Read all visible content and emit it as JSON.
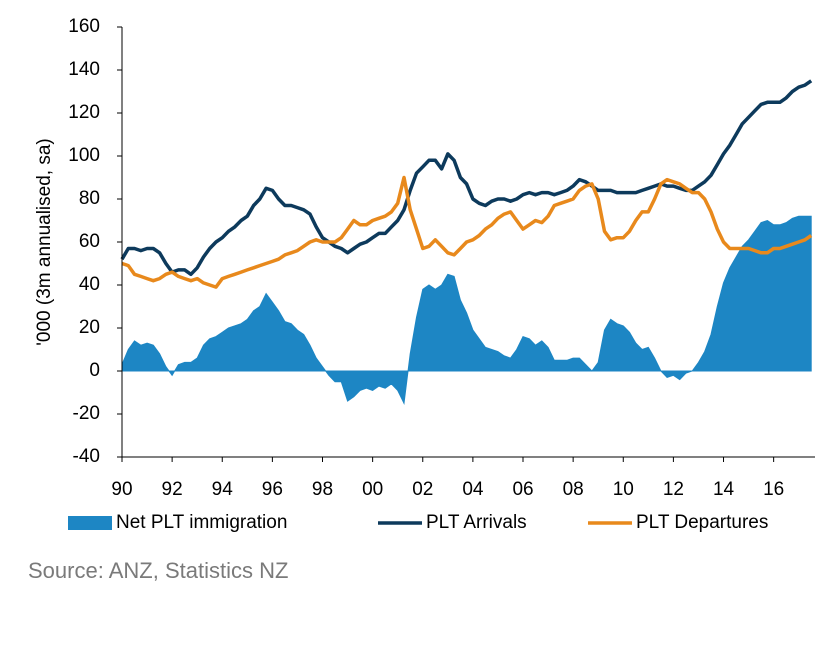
{
  "chart_data": {
    "type": "line",
    "y_label": "'000 (3m annualised, sa)",
    "source": "Source: ANZ, Statistics NZ",
    "ylim": [
      -40,
      160
    ],
    "yticks": [
      -40,
      -20,
      0,
      20,
      40,
      60,
      80,
      100,
      120,
      140,
      160
    ],
    "xlim": [
      1990,
      2017.65
    ],
    "xticks": [
      {
        "value": 1990,
        "label": "90"
      },
      {
        "value": 1992,
        "label": "92"
      },
      {
        "value": 1994,
        "label": "94"
      },
      {
        "value": 1996,
        "label": "96"
      },
      {
        "value": 1998,
        "label": "98"
      },
      {
        "value": 2000,
        "label": "00"
      },
      {
        "value": 2002,
        "label": "02"
      },
      {
        "value": 2004,
        "label": "04"
      },
      {
        "value": 2006,
        "label": "06"
      },
      {
        "value": 2008,
        "label": "08"
      },
      {
        "value": 2010,
        "label": "10"
      },
      {
        "value": 2012,
        "label": "12"
      },
      {
        "value": 2014,
        "label": "14"
      },
      {
        "value": 2016,
        "label": "16"
      }
    ],
    "x": [
      1990,
      1990.25,
      1990.5,
      1990.75,
      1991,
      1991.25,
      1991.5,
      1991.75,
      1992,
      1992.25,
      1992.5,
      1992.75,
      1993,
      1993.25,
      1993.5,
      1993.75,
      1994,
      1994.25,
      1994.5,
      1994.75,
      1995,
      1995.25,
      1995.5,
      1995.75,
      1996,
      1996.25,
      1996.5,
      1996.75,
      1997,
      1997.25,
      1997.5,
      1997.75,
      1998,
      1998.25,
      1998.5,
      1998.75,
      1999,
      1999.25,
      1999.5,
      1999.75,
      2000,
      2000.25,
      2000.5,
      2000.75,
      2001,
      2001.25,
      2001.5,
      2001.75,
      2002,
      2002.25,
      2002.5,
      2002.75,
      2003,
      2003.25,
      2003.5,
      2003.75,
      2004,
      2004.25,
      2004.5,
      2004.75,
      2005,
      2005.25,
      2005.5,
      2005.75,
      2006,
      2006.25,
      2006.5,
      2006.75,
      2007,
      2007.25,
      2007.5,
      2007.75,
      2008,
      2008.25,
      2008.5,
      2008.75,
      2009,
      2009.25,
      2009.5,
      2009.75,
      2010,
      2010.25,
      2010.5,
      2010.75,
      2011,
      2011.25,
      2011.5,
      2011.75,
      2012,
      2012.25,
      2012.5,
      2012.75,
      2013,
      2013.25,
      2013.5,
      2013.75,
      2014,
      2014.25,
      2014.5,
      2014.75,
      2015,
      2015.25,
      2015.5,
      2015.75,
      2016,
      2016.25,
      2016.5,
      2016.75,
      2017,
      2017.25,
      2017.5
    ],
    "series": [
      {
        "name": "Net PLT immigration",
        "color": "#1d86c4",
        "style": "area",
        "values": [
          3,
          10,
          14,
          12,
          13,
          12,
          8,
          2,
          -2,
          3,
          4,
          4,
          6,
          12,
          15,
          16,
          18,
          20,
          21,
          22,
          24,
          28,
          30,
          36,
          32,
          28,
          23,
          22,
          19,
          17,
          12,
          6,
          2,
          -2,
          -5,
          -5,
          -14,
          -12,
          -9,
          -8,
          -9,
          -7,
          -8,
          -6,
          -9,
          -15,
          8,
          25,
          38,
          40,
          38,
          40,
          45,
          44,
          33,
          27,
          19,
          15,
          11,
          10,
          9,
          7,
          6,
          10,
          16,
          15,
          12,
          14,
          11,
          5,
          5,
          5,
          6,
          6,
          3,
          0,
          4,
          19,
          24,
          22,
          21,
          18,
          13,
          10,
          11,
          6,
          0,
          -3,
          -2,
          -4,
          -1,
          0,
          4,
          9,
          17,
          30,
          41,
          48,
          53,
          58,
          61,
          65,
          69,
          70,
          68,
          68,
          69,
          71,
          72,
          72,
          72
        ]
      },
      {
        "name": "PLT Arrivals",
        "color": "#0d3a5c",
        "style": "line",
        "values": [
          52,
          57,
          57,
          56,
          57,
          57,
          55,
          50,
          46,
          47,
          47,
          45,
          48,
          53,
          57,
          60,
          62,
          65,
          67,
          70,
          72,
          77,
          80,
          85,
          84,
          80,
          77,
          77,
          76,
          75,
          73,
          67,
          62,
          60,
          58,
          57,
          55,
          57,
          59,
          60,
          62,
          64,
          64,
          67,
          70,
          75,
          84,
          92,
          95,
          98,
          98,
          94,
          101,
          98,
          90,
          87,
          80,
          78,
          77,
          79,
          80,
          80,
          79,
          80,
          82,
          83,
          82,
          83,
          83,
          82,
          83,
          84,
          86,
          89,
          88,
          86,
          84,
          84,
          84,
          83,
          83,
          83,
          83,
          84,
          85,
          86,
          87,
          86,
          86,
          85,
          84,
          84,
          86,
          88,
          91,
          96,
          101,
          105,
          110,
          115,
          118,
          121,
          124,
          125,
          125,
          125,
          127,
          130,
          132,
          133,
          135
        ]
      },
      {
        "name": "PLT Departures",
        "color": "#e8891c",
        "style": "line",
        "values": [
          50,
          49,
          45,
          44,
          43,
          42,
          43,
          45,
          46,
          44,
          43,
          42,
          43,
          41,
          40,
          39,
          43,
          44,
          45,
          46,
          47,
          48,
          49,
          50,
          51,
          52,
          54,
          55,
          56,
          58,
          60,
          61,
          60,
          60,
          60,
          62,
          66,
          70,
          68,
          68,
          70,
          71,
          72,
          74,
          78,
          90,
          75,
          66,
          57,
          58,
          61,
          58,
          55,
          54,
          57,
          60,
          61,
          63,
          66,
          68,
          71,
          73,
          74,
          70,
          66,
          68,
          70,
          69,
          72,
          77,
          78,
          79,
          80,
          84,
          86,
          87,
          80,
          65,
          61,
          62,
          62,
          65,
          70,
          74,
          74,
          80,
          87,
          89,
          88,
          87,
          85,
          83,
          83,
          80,
          74,
          66,
          60,
          57,
          57,
          57,
          57,
          56,
          55,
          55,
          57,
          57,
          58,
          59,
          60,
          61,
          63
        ]
      }
    ]
  }
}
